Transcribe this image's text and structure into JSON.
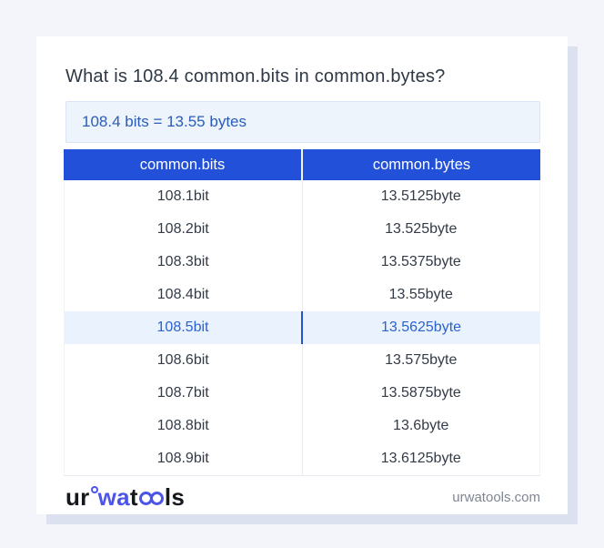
{
  "page": {
    "title": "What is 108.4 common.bits in common.bytes?"
  },
  "result": {
    "text": "108.4 bits = 13.55 bytes"
  },
  "table": {
    "headers": [
      "common.bits",
      "common.bytes"
    ],
    "rows": [
      {
        "bits": "108.1bit",
        "bytes": "13.5125byte",
        "highlight": false
      },
      {
        "bits": "108.2bit",
        "bytes": "13.525byte",
        "highlight": false
      },
      {
        "bits": "108.3bit",
        "bytes": "13.5375byte",
        "highlight": false
      },
      {
        "bits": "108.4bit",
        "bytes": "13.55byte",
        "highlight": false
      },
      {
        "bits": "108.5bit",
        "bytes": "13.5625byte",
        "highlight": true
      },
      {
        "bits": "108.6bit",
        "bytes": "13.575byte",
        "highlight": false
      },
      {
        "bits": "108.7bit",
        "bytes": "13.5875byte",
        "highlight": false
      },
      {
        "bits": "108.8bit",
        "bytes": "13.6byte",
        "highlight": false
      },
      {
        "bits": "108.9bit",
        "bytes": "13.6125byte",
        "highlight": false
      }
    ]
  },
  "footer": {
    "logo": {
      "part1": "ur",
      "part2": "wa",
      "part3": "t",
      "part4": "ls"
    },
    "site": "urwatools.com"
  },
  "colors": {
    "header_blue": "#2250d8",
    "result_bg": "#edf4fc",
    "result_text": "#2b5cb8",
    "highlight_bg": "#eaf2fe",
    "highlight_text": "#2b62cf",
    "logo_accent": "#4d55e8",
    "shadow": "#dbe1ef",
    "page_bg": "#f3f5fa"
  }
}
